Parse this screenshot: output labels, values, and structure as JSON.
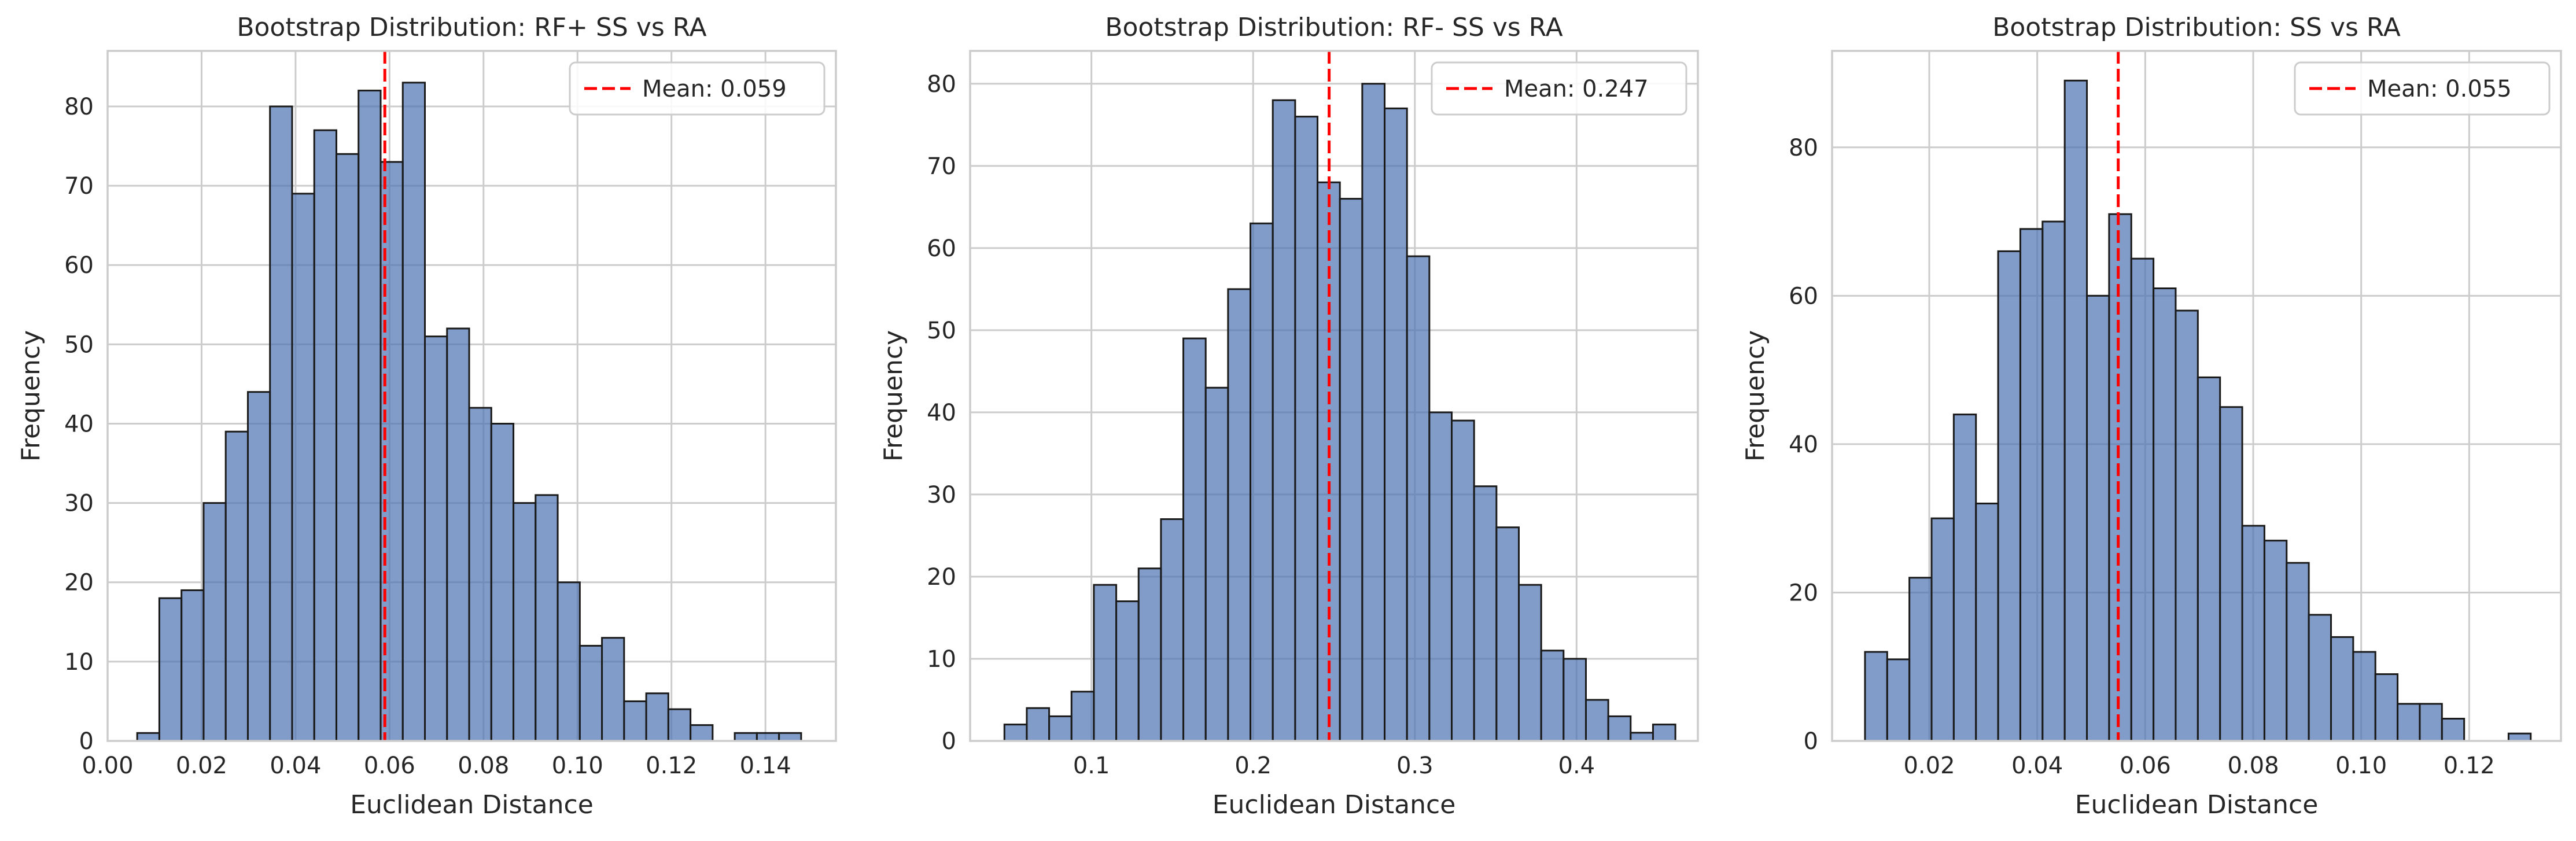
{
  "figure": {
    "background": "#ffffff",
    "plot_background": "#ffffff",
    "grid_color": "#cccccc",
    "spine_color": "#cccccc",
    "bar_fill": "#4c72b0",
    "bar_fill_opacity": 0.7,
    "bar_edge": "#1a1a1a",
    "mean_line_color": "#ff0000"
  },
  "chart_data": [
    {
      "type": "bar",
      "subtype": "histogram",
      "title": "Bootstrap Distribution: RF+ SS vs RA",
      "xlabel": "Euclidean Distance",
      "ylabel": "Frequency",
      "xlim": [
        0.0,
        0.155
      ],
      "ylim": [
        0,
        87
      ],
      "xticks": [
        0.0,
        0.02,
        0.04,
        0.06,
        0.08,
        0.1,
        0.12,
        0.14
      ],
      "xtick_labels": [
        "0.00",
        "0.02",
        "0.04",
        "0.06",
        "0.08",
        "0.10",
        "0.12",
        "0.14"
      ],
      "yticks": [
        0,
        10,
        20,
        30,
        40,
        50,
        60,
        70,
        80
      ],
      "ytick_labels": [
        "0",
        "10",
        "20",
        "30",
        "40",
        "50",
        "60",
        "70",
        "80"
      ],
      "grid": true,
      "bin_start": 0.0063,
      "bin_width": 0.00471,
      "counts": [
        1,
        18,
        19,
        30,
        39,
        44,
        80,
        69,
        77,
        74,
        82,
        73,
        83,
        51,
        52,
        42,
        40,
        30,
        31,
        20,
        12,
        13,
        5,
        6,
        4,
        2,
        0,
        1,
        1,
        1
      ],
      "mean": 0.059,
      "legend": {
        "label": "Mean: 0.059",
        "position": "upper-right"
      }
    },
    {
      "type": "bar",
      "subtype": "histogram",
      "title": "Bootstrap Distribution: RF- SS vs RA",
      "xlabel": "Euclidean Distance",
      "ylabel": "Frequency",
      "xlim": [
        0.025,
        0.475
      ],
      "ylim": [
        0,
        84
      ],
      "xticks": [
        0.1,
        0.2,
        0.3,
        0.4
      ],
      "xtick_labels": [
        "0.1",
        "0.2",
        "0.3",
        "0.4"
      ],
      "yticks": [
        0,
        10,
        20,
        30,
        40,
        50,
        60,
        70,
        80
      ],
      "ytick_labels": [
        "0",
        "10",
        "20",
        "30",
        "40",
        "50",
        "60",
        "70",
        "80"
      ],
      "grid": true,
      "bin_start": 0.0462,
      "bin_width": 0.01383,
      "counts": [
        2,
        4,
        3,
        6,
        19,
        17,
        21,
        27,
        49,
        43,
        55,
        63,
        78,
        76,
        68,
        66,
        80,
        77,
        59,
        40,
        39,
        31,
        26,
        19,
        11,
        10,
        5,
        3,
        1,
        2
      ],
      "mean": 0.247,
      "legend": {
        "label": "Mean: 0.247",
        "position": "upper-right"
      }
    },
    {
      "type": "bar",
      "subtype": "histogram",
      "title": "Bootstrap Distribution: SS vs RA",
      "xlabel": "Euclidean Distance",
      "ylabel": "Frequency",
      "xlim": [
        0.002,
        0.137
      ],
      "ylim": [
        0,
        93
      ],
      "xticks": [
        0.02,
        0.04,
        0.06,
        0.08,
        0.1,
        0.12
      ],
      "xtick_labels": [
        "0.02",
        "0.04",
        "0.06",
        "0.08",
        "0.10",
        "0.12"
      ],
      "yticks": [
        0,
        20,
        40,
        60,
        80
      ],
      "ytick_labels": [
        "0",
        "20",
        "40",
        "60",
        "80"
      ],
      "grid": true,
      "bin_start": 0.0081,
      "bin_width": 0.00411,
      "counts": [
        12,
        11,
        22,
        30,
        44,
        32,
        66,
        69,
        70,
        89,
        60,
        71,
        65,
        61,
        58,
        49,
        45,
        29,
        27,
        24,
        17,
        14,
        12,
        9,
        5,
        5,
        3,
        0,
        0,
        1
      ],
      "mean": 0.055,
      "legend": {
        "label": "Mean: 0.055",
        "position": "upper-right"
      }
    }
  ]
}
